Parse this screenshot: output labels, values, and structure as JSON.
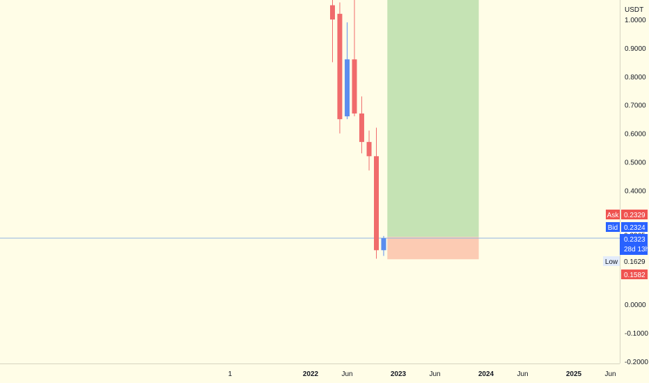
{
  "chart_data": {
    "type": "candlestick",
    "currency_label": "USDT",
    "y_ticks": [
      "1.0000",
      "0.9000",
      "0.8000",
      "0.7000",
      "0.6000",
      "0.5000",
      "0.4000",
      "0.0000",
      "-0.1000",
      "-0.2000"
    ],
    "y_tick_values": [
      1.0,
      0.9,
      0.8,
      0.7,
      0.6,
      0.5,
      0.4,
      0.0,
      -0.1,
      -0.2
    ],
    "ylim": [
      -0.2,
      1.07
    ],
    "x_ticks": [
      {
        "label": "1",
        "bold": false,
        "t": 2021.083
      },
      {
        "label": "2022",
        "bold": true,
        "t": 2022.0
      },
      {
        "label": "Jun",
        "bold": false,
        "t": 2022.417
      },
      {
        "label": "2023",
        "bold": true,
        "t": 2023.0
      },
      {
        "label": "Jun",
        "bold": false,
        "t": 2023.417
      },
      {
        "label": "2024",
        "bold": true,
        "t": 2024.0
      },
      {
        "label": "Jun",
        "bold": false,
        "t": 2024.417
      },
      {
        "label": "2025",
        "bold": true,
        "t": 2025.0
      },
      {
        "label": "Jun",
        "bold": false,
        "t": 2025.417
      }
    ],
    "xlim": [
      2020.07,
      2025.45
    ],
    "candles": [
      {
        "t": 2022.25,
        "open": 1.05,
        "high": 1.12,
        "low": 0.85,
        "close": 1.0
      },
      {
        "t": 2022.333,
        "open": 1.02,
        "high": 1.06,
        "low": 0.6,
        "close": 0.65
      },
      {
        "t": 2022.417,
        "open": 0.66,
        "high": 0.99,
        "low": 0.65,
        "close": 0.86
      },
      {
        "t": 2022.5,
        "open": 0.86,
        "high": 1.12,
        "low": 0.66,
        "close": 0.67
      },
      {
        "t": 2022.583,
        "open": 0.67,
        "high": 0.73,
        "low": 0.53,
        "close": 0.57
      },
      {
        "t": 2022.667,
        "open": 0.57,
        "high": 0.61,
        "low": 0.47,
        "close": 0.52
      },
      {
        "t": 2022.75,
        "open": 0.52,
        "high": 0.62,
        "low": 0.16,
        "close": 0.19
      },
      {
        "t": 2022.833,
        "open": 0.19,
        "high": 0.24,
        "low": 0.17,
        "close": 0.2323
      }
    ],
    "position": {
      "t_start": 2022.875,
      "t_end": 2023.917,
      "entry": 0.2365,
      "target": 1.07,
      "stop": 0.1582,
      "profit_color": "#c5e3b4",
      "loss_color": "#fccbb3"
    },
    "last_price_line": 0.2323,
    "labels": {
      "entry": {
        "value": "0.2365"
      },
      "ask": {
        "name": "Ask",
        "value": "0.2329",
        "price": 0.2329,
        "color": "#ef5350"
      },
      "bid": {
        "name": "Bid",
        "value": "0.2324",
        "price": 0.2324,
        "color": "#2962ff"
      },
      "last": {
        "value": "0.2323",
        "countdown": "28d 13h",
        "price": 0.2323,
        "color": "#2962ff"
      },
      "low": {
        "name": "Low",
        "value": "0.1629",
        "price": 0.1629
      },
      "stop": {
        "value": "0.1582",
        "price": 0.1582,
        "color": "#ef5350"
      }
    },
    "colors": {
      "up": "#5b8def",
      "down": "#f06b6b",
      "background": "#fffde7",
      "last_line": "#90b4e0"
    }
  }
}
